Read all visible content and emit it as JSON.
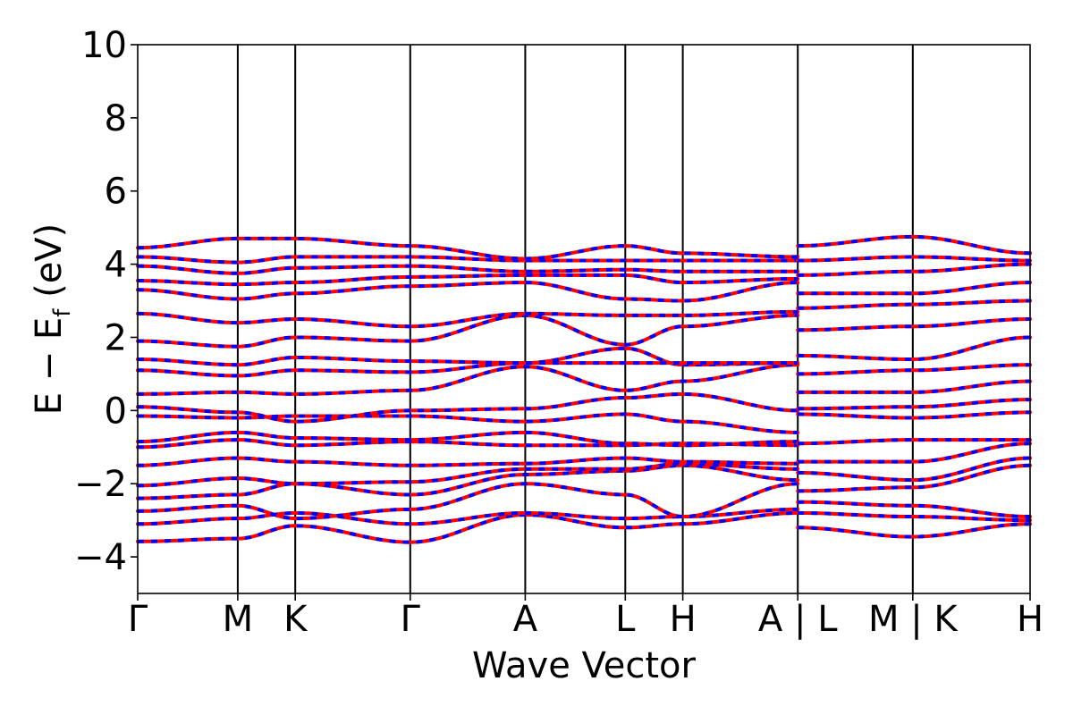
{
  "chart_data": {
    "type": "line",
    "title": "",
    "xlabel": "Wave Vector",
    "ylabel": "E − E_f (eV)",
    "ylabel_main": "E − E",
    "ylabel_sub": "f",
    "ylabel_unit": " (eV)",
    "ylim": [
      -5,
      10
    ],
    "yticks": [
      -4,
      -2,
      0,
      2,
      4,
      6,
      8,
      10
    ],
    "ytick_labels": [
      "−4",
      "−2",
      "0",
      "2",
      "4",
      "6",
      "8",
      "10"
    ],
    "xlim": [
      0,
      7.76
    ],
    "kpoints": [
      {
        "label": "Γ",
        "x": 0
      },
      {
        "label": "M",
        "x": 0.87
      },
      {
        "label": "K",
        "x": 1.37
      },
      {
        "label": "Γ",
        "x": 2.37
      },
      {
        "label": "A",
        "x": 3.37
      },
      {
        "label": "L",
        "x": 4.24
      },
      {
        "label": "H",
        "x": 4.74
      },
      {
        "label": "A | L",
        "x": 5.74
      },
      {
        "label": "M | K",
        "x": 6.74
      },
      {
        "label": "H",
        "x": 7.76
      }
    ],
    "grid": false,
    "legend": "none",
    "colors": {
      "spin_up": "#ff0000",
      "spin_down": "#0000ff"
    },
    "series": [
      {
        "x": [
          0,
          0.87,
          1.37,
          2.37,
          3.37,
          4.24,
          4.74,
          5.74
        ],
        "values": [
          -3.58,
          -3.5,
          -3.15,
          -3.6,
          -2.85,
          -3.2,
          -3.1,
          -2.8
        ]
      },
      {
        "x": [
          0,
          0.87,
          1.37,
          2.37,
          3.37,
          4.24,
          4.74,
          5.74
        ],
        "values": [
          -3.1,
          -2.95,
          -2.8,
          -3.1,
          -2.8,
          -2.95,
          -2.9,
          -2.7
        ]
      },
      {
        "x": [
          0,
          0.87,
          1.37,
          2.37,
          3.37,
          4.24,
          4.74,
          5.74
        ],
        "values": [
          -2.75,
          -2.6,
          -2.95,
          -2.7,
          -2.0,
          -2.3,
          -2.9,
          -2.0
        ]
      },
      {
        "x": [
          0,
          0.87,
          1.37,
          2.37,
          3.37,
          4.24,
          4.74,
          5.74
        ],
        "values": [
          -2.4,
          -2.3,
          -2.0,
          -2.3,
          -1.75,
          -1.65,
          -1.5,
          -1.9
        ]
      },
      {
        "x": [
          0,
          0.87,
          1.37,
          2.37,
          3.37,
          4.24,
          4.74,
          5.74
        ],
        "values": [
          -2.05,
          -1.85,
          -2.0,
          -1.95,
          -1.6,
          -1.6,
          -1.45,
          -1.6
        ]
      },
      {
        "x": [
          0,
          0.87,
          1.37,
          2.37,
          3.37,
          4.24,
          4.74,
          5.74
        ],
        "values": [
          -1.5,
          -1.3,
          -1.4,
          -1.5,
          -1.45,
          -1.3,
          -1.4,
          -1.45
        ]
      },
      {
        "x": [
          0,
          0.87,
          1.37,
          2.37,
          3.37,
          4.24,
          4.74,
          5.74
        ],
        "values": [
          -1.0,
          -0.8,
          -0.95,
          -0.85,
          -0.95,
          -0.95,
          -0.9,
          -0.95
        ]
      },
      {
        "x": [
          0,
          0.87,
          1.37,
          2.37,
          3.37,
          4.24,
          4.74,
          5.74
        ],
        "values": [
          -0.85,
          -0.6,
          -0.75,
          -0.8,
          -0.6,
          -0.9,
          -0.95,
          -0.85
        ]
      },
      {
        "x": [
          0,
          0.87,
          1.37,
          2.37,
          3.37,
          4.24,
          4.74,
          5.74
        ],
        "values": [
          -0.15,
          -0.2,
          -0.15,
          -0.15,
          -0.3,
          -0.1,
          -0.3,
          -0.6
        ]
      },
      {
        "x": [
          0,
          0.87,
          1.37,
          2.37,
          3.37,
          4.24,
          4.74,
          5.74
        ],
        "values": [
          0.1,
          -0.05,
          -0.3,
          0.0,
          0.05,
          0.35,
          0.45,
          0.0
        ]
      },
      {
        "x": [
          0,
          0.87,
          1.37,
          2.37,
          3.37,
          4.24,
          4.74,
          5.74
        ],
        "values": [
          0.45,
          0.5,
          0.45,
          0.55,
          1.2,
          0.55,
          0.8,
          1.25
        ]
      },
      {
        "x": [
          0,
          0.87,
          1.37,
          2.37,
          3.37,
          4.24,
          4.74,
          5.74
        ],
        "values": [
          1.1,
          0.95,
          1.1,
          1.05,
          1.3,
          1.7,
          1.25,
          1.3
        ]
      },
      {
        "x": [
          0,
          0.87,
          1.37,
          2.37,
          3.37,
          4.24,
          4.74,
          5.74
        ],
        "values": [
          1.4,
          1.25,
          1.45,
          1.35,
          1.3,
          1.3,
          1.3,
          1.3
        ]
      },
      {
        "x": [
          0,
          0.87,
          1.37,
          2.37,
          3.37,
          4.24,
          4.74,
          5.74
        ],
        "values": [
          1.9,
          1.75,
          2.0,
          1.9,
          2.6,
          1.8,
          2.3,
          2.6
        ]
      },
      {
        "x": [
          0,
          0.87,
          1.37,
          2.37,
          3.37,
          4.24,
          4.74,
          5.74
        ],
        "values": [
          2.65,
          2.4,
          2.5,
          2.3,
          2.65,
          2.6,
          2.6,
          2.7
        ]
      },
      {
        "x": [
          0,
          0.87,
          1.37,
          2.37,
          3.37,
          4.24,
          4.74,
          5.74
        ],
        "values": [
          3.3,
          3.05,
          3.2,
          3.4,
          3.5,
          3.05,
          3.0,
          3.5
        ]
      },
      {
        "x": [
          0,
          0.87,
          1.37,
          2.37,
          3.37,
          4.24,
          4.74,
          5.74
        ],
        "values": [
          3.55,
          3.45,
          3.5,
          3.65,
          3.7,
          3.7,
          3.5,
          3.6
        ]
      },
      {
        "x": [
          0,
          0.87,
          1.37,
          2.37,
          3.37,
          4.24,
          4.74,
          5.74
        ],
        "values": [
          3.95,
          3.75,
          3.9,
          3.95,
          3.8,
          3.85,
          3.8,
          3.8
        ]
      },
      {
        "x": [
          0,
          0.87,
          1.37,
          2.37,
          3.37,
          4.24,
          4.74,
          5.74
        ],
        "values": [
          4.2,
          4.05,
          4.2,
          4.2,
          4.1,
          4.1,
          4.1,
          4.1
        ]
      },
      {
        "x": [
          0,
          0.87,
          1.37,
          2.37,
          3.37,
          4.24,
          4.74,
          5.74
        ],
        "values": [
          4.45,
          4.7,
          4.7,
          4.5,
          4.15,
          4.5,
          4.3,
          4.2
        ]
      },
      {
        "x": [
          5.74,
          6.74,
          7.76
        ],
        "values": [
          -3.2,
          -3.45,
          -3.1
        ]
      },
      {
        "x": [
          5.74,
          6.74,
          7.76
        ],
        "values": [
          -2.8,
          -2.9,
          -3.0
        ]
      },
      {
        "x": [
          5.74,
          6.74,
          7.76
        ],
        "values": [
          -2.5,
          -2.6,
          -2.9
        ]
      },
      {
        "x": [
          5.74,
          6.74,
          7.76
        ],
        "values": [
          -2.2,
          -2.1,
          -1.5
        ]
      },
      {
        "x": [
          5.74,
          6.74,
          7.76
        ],
        "values": [
          -1.7,
          -1.9,
          -1.3
        ]
      },
      {
        "x": [
          5.74,
          6.74,
          7.76
        ],
        "values": [
          -1.4,
          -1.4,
          -0.9
        ]
      },
      {
        "x": [
          5.74,
          6.74,
          7.76
        ],
        "values": [
          -0.9,
          -0.8,
          -0.8
        ]
      },
      {
        "x": [
          5.74,
          6.74,
          7.76
        ],
        "values": [
          -0.1,
          -0.2,
          -0.05
        ]
      },
      {
        "x": [
          5.74,
          6.74,
          7.76
        ],
        "values": [
          0.05,
          0.1,
          0.3
        ]
      },
      {
        "x": [
          5.74,
          6.74,
          7.76
        ],
        "values": [
          0.5,
          0.5,
          0.8
        ]
      },
      {
        "x": [
          5.74,
          6.74,
          7.76
        ],
        "values": [
          1.0,
          1.1,
          1.25
        ]
      },
      {
        "x": [
          5.74,
          6.74,
          7.76
        ],
        "values": [
          1.5,
          1.4,
          2.0
        ]
      },
      {
        "x": [
          5.74,
          6.74,
          7.76
        ],
        "values": [
          2.2,
          2.3,
          2.5
        ]
      },
      {
        "x": [
          5.74,
          6.74,
          7.76
        ],
        "values": [
          2.8,
          2.9,
          3.0
        ]
      },
      {
        "x": [
          5.74,
          6.74,
          7.76
        ],
        "values": [
          3.2,
          3.2,
          3.5
        ]
      },
      {
        "x": [
          5.74,
          6.74,
          7.76
        ],
        "values": [
          3.7,
          3.8,
          4.0
        ]
      },
      {
        "x": [
          5.74,
          6.74,
          7.76
        ],
        "values": [
          4.1,
          4.2,
          4.1
        ]
      },
      {
        "x": [
          5.74,
          6.74,
          7.76
        ],
        "values": [
          4.5,
          4.75,
          4.3
        ]
      }
    ]
  }
}
